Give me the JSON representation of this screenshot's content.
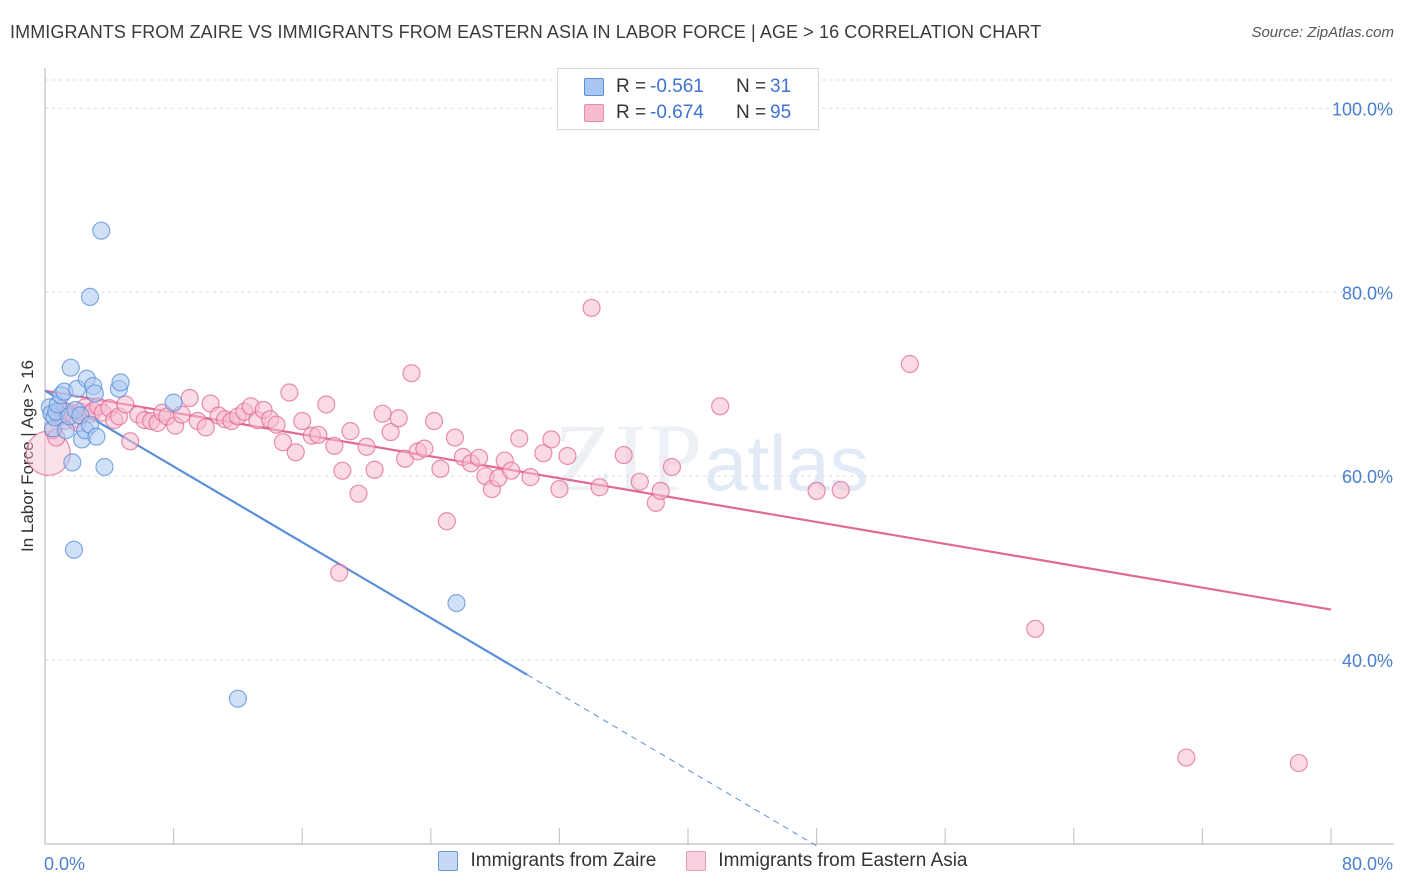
{
  "title": "IMMIGRANTS FROM ZAIRE VS IMMIGRANTS FROM EASTERN ASIA IN LABOR FORCE | AGE > 16 CORRELATION CHART",
  "source": "Source: ZipAtlas.com",
  "watermark": {
    "part1": "ZIP",
    "part2": "atlas"
  },
  "legend": {
    "r_label": "R =",
    "n_label": "N =",
    "series": [
      {
        "name": "Immigrants from Zaire",
        "r": "-0.561",
        "n": "31",
        "fill": "#a9c6f0",
        "stroke": "#5b8fd9"
      },
      {
        "name": "Immigrants from Eastern Asia",
        "r": "-0.674",
        "n": "95",
        "fill": "#f6bccd",
        "stroke": "#e88aa8"
      }
    ]
  },
  "chart_data": {
    "type": "scatter",
    "title": "IMMIGRANTS FROM ZAIRE VS IMMIGRANTS FROM EASTERN ASIA IN LABOR FORCE | AGE > 16 CORRELATION CHART",
    "xlabel": "",
    "ylabel": "In Labor Force | Age > 16",
    "xlim": [
      0,
      80
    ],
    "ylim": [
      20,
      102
    ],
    "x_tick_labels": [
      "0.0%",
      "80.0%"
    ],
    "y_ticks": [
      40,
      60,
      80,
      100
    ],
    "y_tick_labels": [
      "40.0%",
      "60.0%",
      "80.0%",
      "100.0%"
    ],
    "grid": "horizontal dashed",
    "legend_position": "top-center",
    "series": [
      {
        "name": "Immigrants from Zaire",
        "color": "#5b8fd9",
        "fill": "#a9c6f0",
        "trend": {
          "x0": 0,
          "y0": 69.3,
          "x1": 30,
          "y1": 38.4,
          "dashed_to_x": 48,
          "dashed_to_y": 19.8
        },
        "points": [
          [
            0.3,
            67.5
          ],
          [
            0.4,
            66.8
          ],
          [
            0.5,
            65.2
          ],
          [
            0.6,
            66.4
          ],
          [
            0.7,
            67.0
          ],
          [
            0.8,
            67.8
          ],
          [
            1.0,
            68.8
          ],
          [
            1.2,
            69.2
          ],
          [
            1.3,
            65.0
          ],
          [
            1.5,
            66.5
          ],
          [
            1.6,
            71.8
          ],
          [
            1.7,
            61.5
          ],
          [
            1.8,
            52.0
          ],
          [
            1.9,
            67.2
          ],
          [
            2.0,
            69.5
          ],
          [
            2.2,
            66.6
          ],
          [
            2.3,
            64.0
          ],
          [
            2.5,
            65.0
          ],
          [
            2.6,
            70.6
          ],
          [
            2.8,
            65.6
          ],
          [
            3.0,
            69.8
          ],
          [
            3.1,
            69.0
          ],
          [
            3.2,
            64.3
          ],
          [
            3.5,
            86.7
          ],
          [
            3.7,
            61.0
          ],
          [
            2.8,
            79.5
          ],
          [
            4.6,
            69.5
          ],
          [
            4.7,
            70.2
          ],
          [
            8.0,
            68.0
          ],
          [
            12.0,
            35.8
          ],
          [
            25.6,
            46.2
          ]
        ]
      },
      {
        "name": "Immigrants from Eastern Asia",
        "color": "#e06a96",
        "fill": "#f6bccd",
        "trend": {
          "x0": 0,
          "y0": 69.3,
          "x1": 80,
          "y1": 45.5
        },
        "points": [
          [
            0.2,
            62.5
          ],
          [
            0.5,
            65.0
          ],
          [
            0.7,
            64.2
          ],
          [
            0.9,
            66.5
          ],
          [
            1.0,
            67.3
          ],
          [
            1.2,
            66.0
          ],
          [
            1.5,
            67.0
          ],
          [
            1.8,
            66.2
          ],
          [
            2.0,
            65.8
          ],
          [
            2.2,
            67.0
          ],
          [
            2.5,
            67.5
          ],
          [
            2.8,
            66.8
          ],
          [
            3.0,
            67.1
          ],
          [
            3.3,
            67.6
          ],
          [
            3.6,
            66.9
          ],
          [
            4.0,
            67.4
          ],
          [
            4.3,
            66.1
          ],
          [
            4.6,
            66.5
          ],
          [
            5.0,
            67.8
          ],
          [
            5.3,
            63.8
          ],
          [
            5.8,
            66.7
          ],
          [
            6.2,
            66.1
          ],
          [
            6.6,
            66.0
          ],
          [
            7.0,
            65.8
          ],
          [
            7.3,
            66.9
          ],
          [
            7.6,
            66.5
          ],
          [
            8.1,
            65.5
          ],
          [
            8.5,
            66.7
          ],
          [
            9.0,
            68.5
          ],
          [
            9.5,
            66.0
          ],
          [
            10.0,
            65.3
          ],
          [
            10.3,
            67.9
          ],
          [
            10.8,
            66.6
          ],
          [
            11.2,
            66.2
          ],
          [
            11.6,
            66.0
          ],
          [
            12.0,
            66.5
          ],
          [
            12.4,
            67.0
          ],
          [
            12.8,
            67.6
          ],
          [
            13.2,
            66.1
          ],
          [
            13.6,
            67.2
          ],
          [
            14.0,
            66.2
          ],
          [
            14.4,
            65.6
          ],
          [
            14.8,
            63.7
          ],
          [
            15.2,
            69.1
          ],
          [
            15.6,
            62.6
          ],
          [
            16.0,
            66.0
          ],
          [
            16.6,
            64.4
          ],
          [
            17.0,
            64.5
          ],
          [
            17.5,
            67.8
          ],
          [
            18.0,
            63.3
          ],
          [
            18.5,
            60.6
          ],
          [
            19.0,
            64.9
          ],
          [
            19.5,
            58.1
          ],
          [
            20.0,
            63.2
          ],
          [
            20.5,
            60.7
          ],
          [
            21.0,
            66.8
          ],
          [
            21.5,
            64.8
          ],
          [
            22.0,
            66.3
          ],
          [
            22.4,
            61.9
          ],
          [
            22.8,
            71.2
          ],
          [
            23.2,
            62.7
          ],
          [
            23.6,
            63.0
          ],
          [
            24.2,
            66.0
          ],
          [
            24.6,
            60.8
          ],
          [
            25.0,
            55.1
          ],
          [
            25.5,
            64.2
          ],
          [
            26.0,
            62.1
          ],
          [
            26.5,
            61.4
          ],
          [
            27.0,
            62.0
          ],
          [
            27.4,
            60.0
          ],
          [
            27.8,
            58.6
          ],
          [
            28.2,
            59.8
          ],
          [
            28.6,
            61.7
          ],
          [
            29.0,
            60.6
          ],
          [
            29.5,
            64.1
          ],
          [
            30.2,
            59.9
          ],
          [
            31.0,
            62.5
          ],
          [
            31.5,
            64.0
          ],
          [
            32.0,
            58.6
          ],
          [
            32.5,
            62.2
          ],
          [
            34.0,
            78.3
          ],
          [
            34.5,
            58.8
          ],
          [
            36.0,
            62.3
          ],
          [
            37.0,
            59.4
          ],
          [
            38.0,
            57.1
          ],
          [
            38.3,
            58.4
          ],
          [
            39.0,
            61.0
          ],
          [
            42.0,
            67.6
          ],
          [
            48.0,
            58.4
          ],
          [
            49.5,
            58.5
          ],
          [
            53.8,
            72.2
          ],
          [
            61.6,
            43.4
          ],
          [
            71.0,
            29.4
          ],
          [
            78.0,
            28.8
          ],
          [
            18.3,
            49.5
          ]
        ]
      }
    ]
  }
}
